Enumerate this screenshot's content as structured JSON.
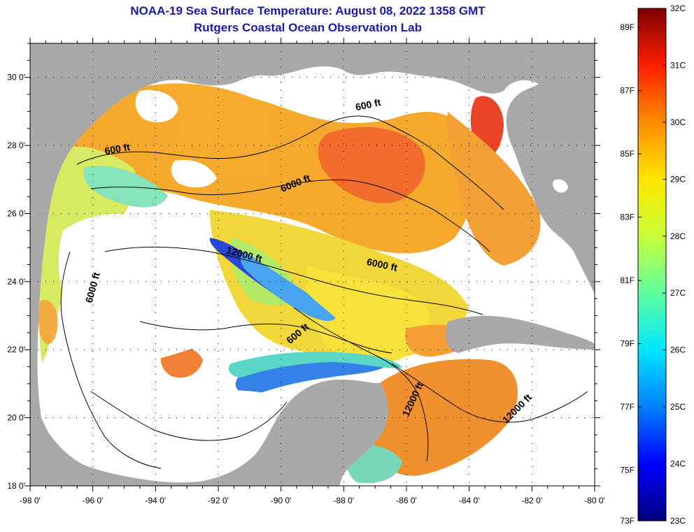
{
  "title": {
    "line1": "NOAA-19 Sea Surface Temperature:  August 08, 2022 1358 GMT",
    "line2": "Rutgers Coastal Ocean Observation Lab"
  },
  "map": {
    "lon_range": [
      -98,
      -80
    ],
    "lat_range": [
      18,
      31
    ],
    "x_ticks": [
      {
        "lon": -98,
        "label": "-98 0'"
      },
      {
        "lon": -96,
        "label": "-96 0'"
      },
      {
        "lon": -94,
        "label": "-94 0'"
      },
      {
        "lon": -92,
        "label": "-92 0'"
      },
      {
        "lon": -90,
        "label": "-90 0'"
      },
      {
        "lon": -88,
        "label": "-88 0'"
      },
      {
        "lon": -86,
        "label": "-86 0'"
      },
      {
        "lon": -84,
        "label": "-84 0'"
      },
      {
        "lon": -82,
        "label": "-82 0'"
      },
      {
        "lon": -80,
        "label": "-80 0'"
      }
    ],
    "y_ticks": [
      {
        "lat": 30,
        "label": "30 0'"
      },
      {
        "lat": 28,
        "label": "28 0'"
      },
      {
        "lat": 26,
        "label": "26 0'"
      },
      {
        "lat": 24,
        "label": "24 0'"
      },
      {
        "lat": 22,
        "label": "22 0'"
      },
      {
        "lat": 20,
        "label": "20 0'"
      },
      {
        "lat": 18,
        "label": "18 0'"
      }
    ],
    "contour_labels": [
      {
        "text": "600 ft",
        "lon": -87.2,
        "lat": 29.1,
        "angle": -12
      },
      {
        "text": "600 ft",
        "lon": -95.2,
        "lat": 27.8,
        "angle": -10
      },
      {
        "text": "6000 ft",
        "lon": -89.5,
        "lat": 26.8,
        "angle": -22
      },
      {
        "text": "12000 ft",
        "lon": -91.2,
        "lat": 24.7,
        "angle": 15
      },
      {
        "text": "6000 ft",
        "lon": -86.8,
        "lat": 24.4,
        "angle": 12
      },
      {
        "text": "6000 ft",
        "lon": -95.9,
        "lat": 23.8,
        "angle": -75
      },
      {
        "text": "600 ft",
        "lon": -89.4,
        "lat": 22.4,
        "angle": -40
      },
      {
        "text": "12000 ft",
        "lon": -85.7,
        "lat": 20.5,
        "angle": -65
      },
      {
        "text": "12000 ft",
        "lon": -82.4,
        "lat": 20.2,
        "angle": -45
      }
    ],
    "colors": {
      "land": "#a9a9a9",
      "cloud": "#ffffff",
      "contour": "#000000"
    }
  },
  "colorbar": {
    "f_labels": [
      "89F",
      "87F",
      "85F",
      "83F",
      "81F",
      "79F",
      "77F",
      "75F",
      "73F"
    ],
    "c_labels": [
      "32C",
      "31C",
      "30C",
      "29C",
      "28C",
      "27C",
      "26C",
      "25C",
      "24C",
      "23C"
    ],
    "range_c": [
      23,
      32
    ],
    "gradient": [
      "#00007f",
      "#0000ff",
      "#0080ff",
      "#00e5ff",
      "#5fff9f",
      "#c8ff37",
      "#ffe600",
      "#ff8c00",
      "#ff1e00",
      "#7f0000"
    ]
  }
}
